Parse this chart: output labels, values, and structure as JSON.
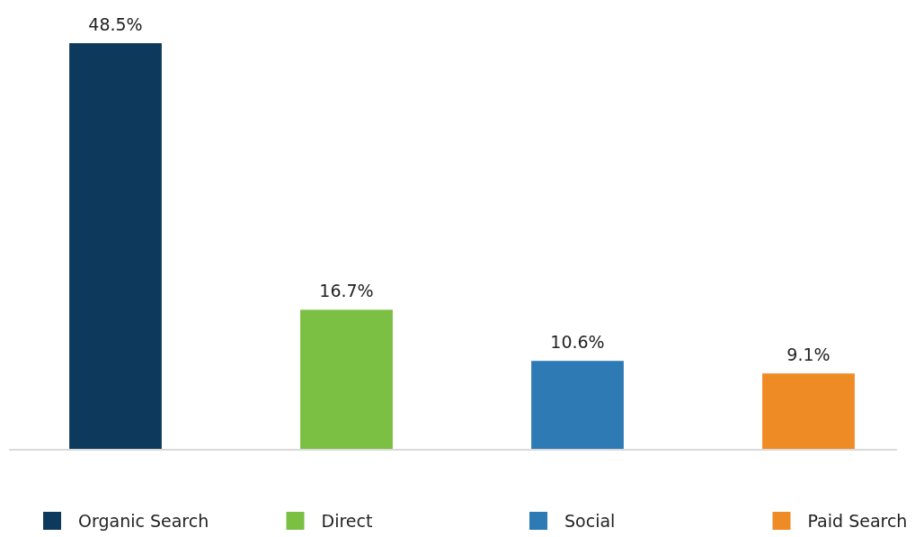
{
  "chart_data": {
    "type": "bar",
    "categories": [
      null,
      null,
      null,
      null
    ],
    "stacked": true,
    "legend": "bottom",
    "series": [
      {
        "name": "Organic Search",
        "color": "#0d3a5c",
        "values": [
          48.5,
          null,
          null,
          null
        ],
        "value_labels": [
          "48.5%",
          null,
          null,
          null
        ]
      },
      {
        "name": "Direct",
        "color": "#7bbf43",
        "values": [
          null,
          16.7,
          null,
          null
        ],
        "value_labels": [
          null,
          "16.7%",
          null,
          null
        ]
      },
      {
        "name": "Social",
        "color": "#2d7ab5",
        "values": [
          null,
          null,
          10.6,
          null
        ],
        "value_labels": [
          null,
          null,
          "10.6%",
          null
        ]
      },
      {
        "name": "Paid Search",
        "color": "#ef8b24",
        "values": [
          null,
          null,
          null,
          9.1
        ],
        "value_labels": [
          null,
          null,
          null,
          "9.1%"
        ]
      }
    ]
  }
}
